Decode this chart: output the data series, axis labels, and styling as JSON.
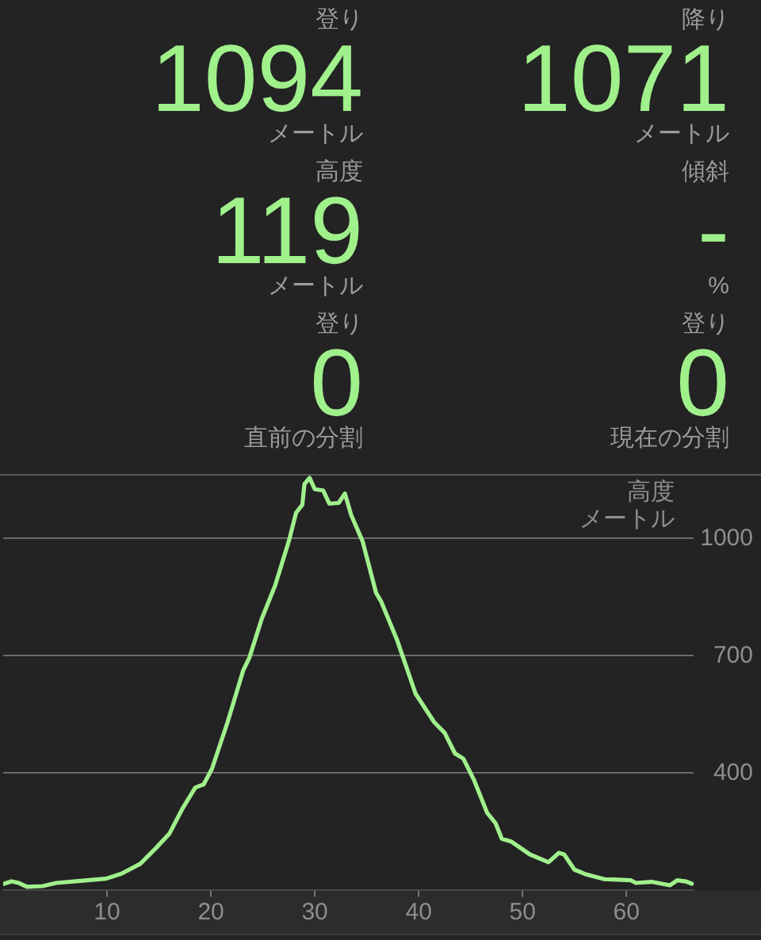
{
  "chart_data": [
    {
      "type": "other",
      "color": "#a0f08c",
      "annotations": [
        "登り",
        "1094",
        "メートル",
        "降り",
        "1071",
        "メートル",
        "高度",
        "119",
        "メートル",
        "傾斜",
        "-",
        "%",
        "登り",
        "0",
        "直前の分割",
        "登り",
        "0",
        "現在の分割"
      ]
    },
    {
      "type": "line",
      "color": "#a0f08c",
      "ylabel": "高度",
      "annotations": [
        "メートル"
      ],
      "x": [
        0.1,
        0.8,
        1.5,
        2.3,
        3.8,
        5.1,
        6.8,
        9.9,
        11.4,
        13.2,
        14.7,
        16.0,
        17.3,
        18.5,
        19.3,
        20.1,
        21.6,
        23.1,
        23.7,
        24.9,
        26.2,
        27.5,
        28.2,
        28.8,
        29.0,
        29.5,
        30.0,
        30.8,
        31.4,
        32.3,
        32.9,
        33.5,
        34.6,
        35.9,
        36.4,
        37.9,
        39.7,
        41.5,
        42.5,
        43.5,
        44.3,
        45.3,
        46.6,
        47.4,
        48.0,
        48.9,
        50.7,
        52.5,
        53.5,
        54.0,
        55.0,
        56.0,
        57.8,
        60.4,
        60.9,
        62.4,
        64.2,
        64.9,
        65.7,
        66.3
      ],
      "values": [
        117,
        123,
        119,
        109,
        111,
        119,
        123,
        130,
        143,
        168,
        208,
        245,
        311,
        363,
        371,
        411,
        530,
        662,
        695,
        795,
        881,
        993,
        1066,
        1086,
        1139,
        1155,
        1126,
        1123,
        1089,
        1091,
        1115,
        1060,
        993,
        861,
        838,
        742,
        603,
        530,
        503,
        450,
        437,
        384,
        298,
        272,
        232,
        225,
        192,
        172,
        196,
        192,
        153,
        142,
        129,
        126,
        119,
        122,
        113,
        126,
        123,
        117
      ],
      "xlim": [
        0,
        66.5
      ],
      "ylim": [
        100,
        1165
      ],
      "xticks": [
        10,
        20,
        30,
        40,
        50,
        60
      ],
      "yticks": [
        400,
        700,
        1000
      ],
      "grid": "y",
      "marker": "none",
      "line_style": "solid"
    }
  ]
}
